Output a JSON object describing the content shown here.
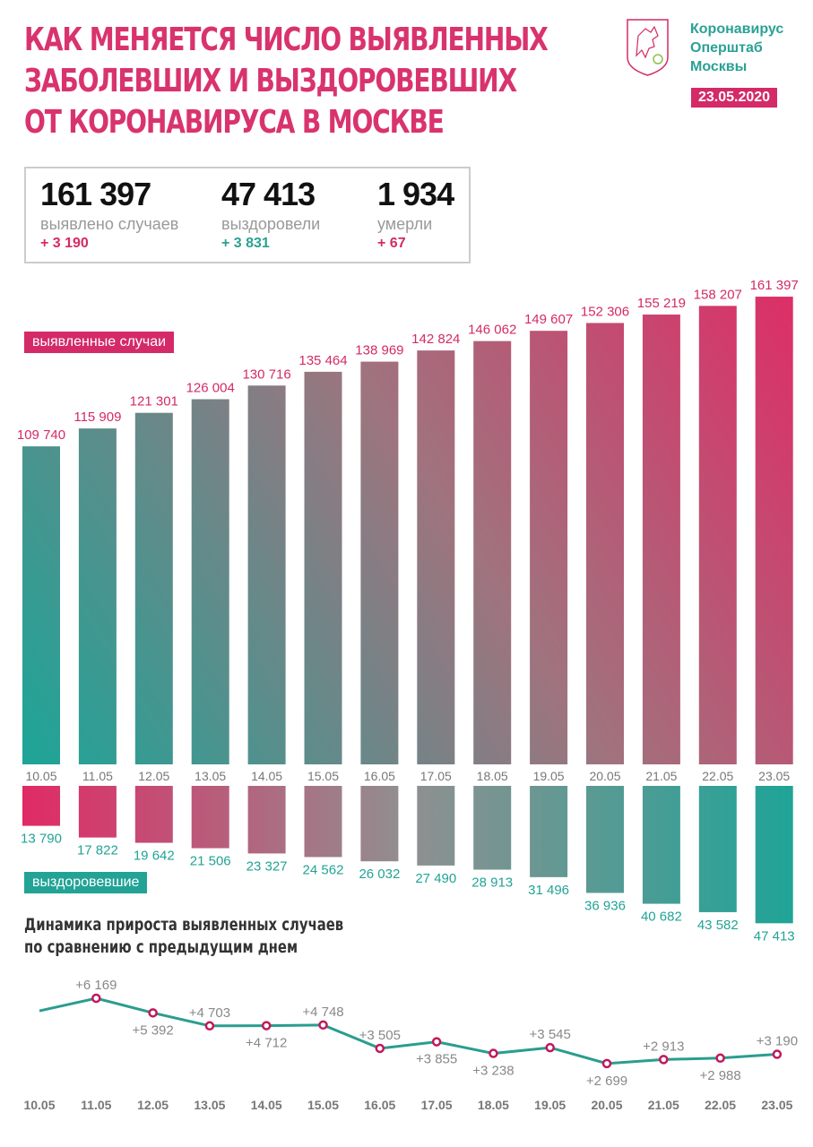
{
  "header": {
    "title_lines": [
      "Как меняется число выявленных",
      "заболевших и выздоровевших",
      "от коронавируса в Москве"
    ],
    "logo_lines": [
      "Коронавирус",
      "Оперштаб",
      "Москвы"
    ],
    "date": "23.05.2020"
  },
  "stats": [
    {
      "value": "161 397",
      "label": "выявлено случаев",
      "increment": "+ 3 190",
      "color": "#d42a67"
    },
    {
      "value": "47 413",
      "label": "выздоровели",
      "increment": "+ 3 831",
      "color": "#2aa195"
    },
    {
      "value": "1 934",
      "label": "умерли",
      "increment": "+ 67",
      "color": "#d42a67"
    }
  ],
  "colors": {
    "pink": "#d42a67",
    "teal": "#22a396",
    "gray": "#8c8c8c"
  },
  "chart_data": [
    {
      "type": "bar",
      "categories": [
        "10.05",
        "11.05",
        "12.05",
        "13.05",
        "14.05",
        "15.05",
        "16.05",
        "17.05",
        "18.05",
        "19.05",
        "20.05",
        "21.05",
        "22.05",
        "23.05"
      ],
      "series": [
        {
          "name": "выявленные случаи",
          "values": [
            109740,
            115909,
            121301,
            126004,
            130716,
            135464,
            138969,
            142824,
            146062,
            149607,
            152306,
            155219,
            158207,
            161397
          ],
          "labels": [
            "109 740",
            "115 909",
            "121 301",
            "126 004",
            "130 716",
            "135 464",
            "138 969",
            "142 824",
            "146 062",
            "149 607",
            "152 306",
            "155 219",
            "158 207",
            "161 397"
          ]
        },
        {
          "name": "выздоровевшие",
          "values": [
            13790,
            17822,
            19642,
            21506,
            23327,
            24562,
            26032,
            27490,
            28913,
            31496,
            36936,
            40682,
            43582,
            47413
          ],
          "labels": [
            "13 790",
            "17 822",
            "19 642",
            "21 506",
            "23 327",
            "24 562",
            "26 032",
            "27 490",
            "28 913",
            "31 496",
            "36 936",
            "40 682",
            "43 582",
            "47 413"
          ]
        }
      ]
    },
    {
      "type": "line",
      "title": "Динамика прироста выявленных случаев по сравнению с предыдущим днем",
      "title_lines": [
        "Динамика прироста выявленных случаев",
        "по сравнению с предыдущим днем"
      ],
      "categories": [
        "10.05",
        "11.05",
        "12.05",
        "13.05",
        "14.05",
        "15.05",
        "16.05",
        "17.05",
        "18.05",
        "19.05",
        "20.05",
        "21.05",
        "22.05",
        "23.05"
      ],
      "values": [
        5500,
        6169,
        5392,
        4703,
        4712,
        4748,
        3505,
        3855,
        3238,
        3545,
        2699,
        2913,
        2988,
        3190
      ],
      "labels": [
        "",
        "+6 169",
        "+5 392",
        "+4 703",
        "+4 712",
        "+4 748",
        "+3 505",
        "+3 855",
        "+3 238",
        "+3 545",
        "+2 699",
        "+2 913",
        "+2 988",
        "+3 190"
      ]
    }
  ]
}
